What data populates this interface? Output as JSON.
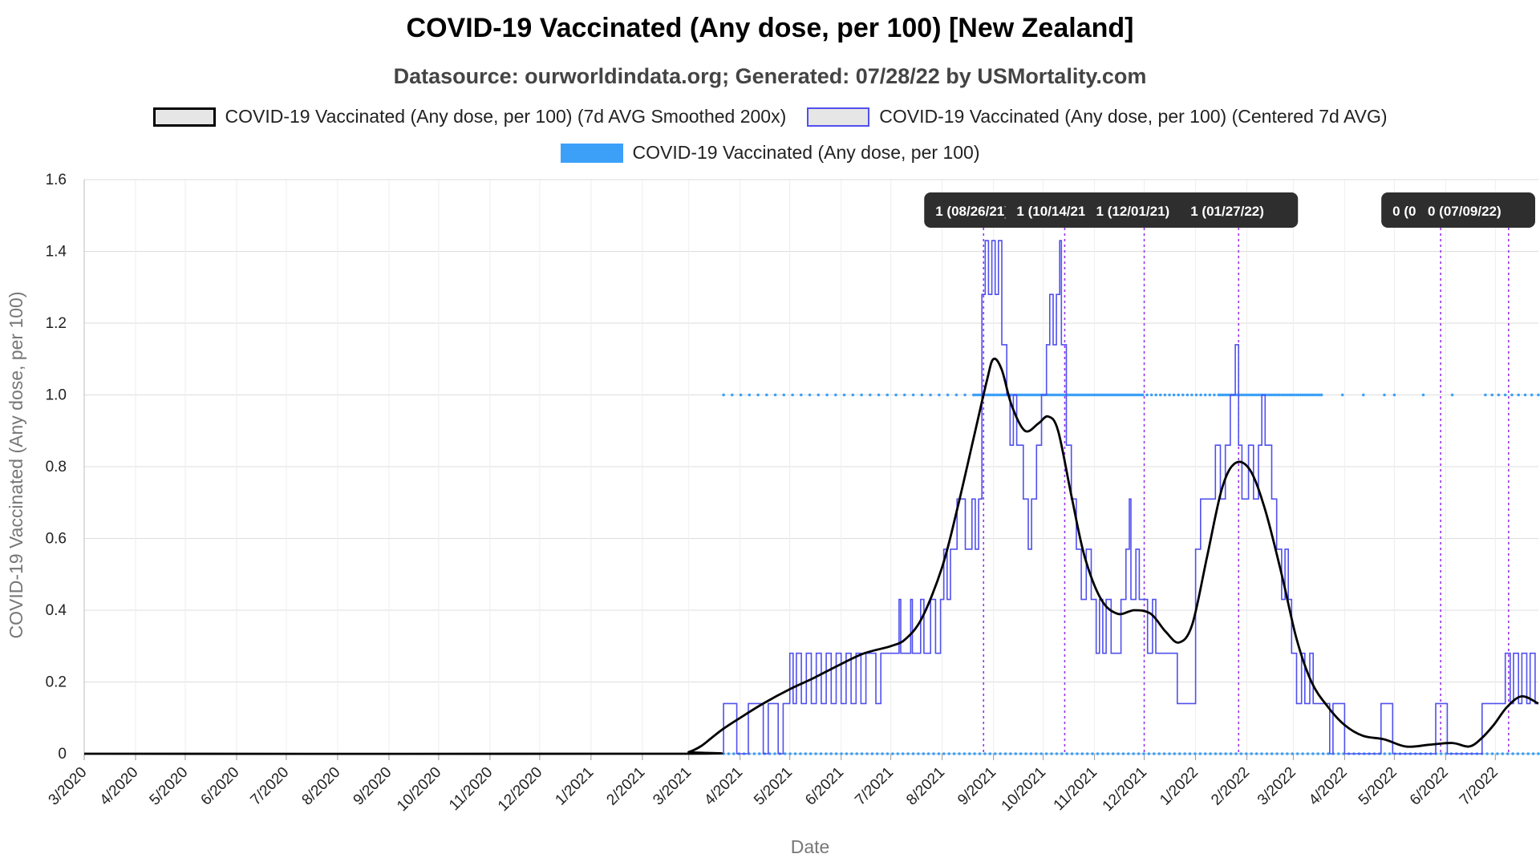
{
  "chart_data": {
    "type": "line",
    "title": "COVID-19 Vaccinated (Any dose, per 100) [New Zealand]",
    "subtitle": "Datasource: ourworldindata.org; Generated: 07/28/22 by USMortality.com",
    "xlabel": "Date",
    "ylabel": "COVID-19 Vaccinated (Any dose, per 100)",
    "ylim": [
      0,
      1.6
    ],
    "yticks": [
      "0",
      "0.2",
      "0.4",
      "0.6",
      "0.8",
      "1.0",
      "1.2",
      "1.4",
      "1.6"
    ],
    "x_range": [
      "2020-03-01",
      "2022-07-27"
    ],
    "xticks": [
      {
        "date": "2020-03-01",
        "label": "3/2020"
      },
      {
        "date": "2020-04-01",
        "label": "4/2020"
      },
      {
        "date": "2020-05-01",
        "label": "5/2020"
      },
      {
        "date": "2020-06-01",
        "label": "6/2020"
      },
      {
        "date": "2020-07-01",
        "label": "7/2020"
      },
      {
        "date": "2020-08-01",
        "label": "8/2020"
      },
      {
        "date": "2020-09-01",
        "label": "9/2020"
      },
      {
        "date": "2020-10-01",
        "label": "10/2020"
      },
      {
        "date": "2020-11-01",
        "label": "11/2020"
      },
      {
        "date": "2020-12-01",
        "label": "12/2020"
      },
      {
        "date": "2021-01-01",
        "label": "1/2021"
      },
      {
        "date": "2021-02-01",
        "label": "2/2021"
      },
      {
        "date": "2021-03-01",
        "label": "3/2021"
      },
      {
        "date": "2021-04-01",
        "label": "4/2021"
      },
      {
        "date": "2021-05-01",
        "label": "5/2021"
      },
      {
        "date": "2021-06-01",
        "label": "6/2021"
      },
      {
        "date": "2021-07-01",
        "label": "7/2021"
      },
      {
        "date": "2021-08-01",
        "label": "8/2021"
      },
      {
        "date": "2021-09-01",
        "label": "9/2021"
      },
      {
        "date": "2021-10-01",
        "label": "10/2021"
      },
      {
        "date": "2021-11-01",
        "label": "11/2021"
      },
      {
        "date": "2021-12-01",
        "label": "12/2021"
      },
      {
        "date": "2022-01-01",
        "label": "1/2022"
      },
      {
        "date": "2022-02-01",
        "label": "2/2022"
      },
      {
        "date": "2022-03-01",
        "label": "3/2022"
      },
      {
        "date": "2022-04-01",
        "label": "4/2022"
      },
      {
        "date": "2022-05-01",
        "label": "5/2022"
      },
      {
        "date": "2022-06-01",
        "label": "6/2022"
      },
      {
        "date": "2022-07-01",
        "label": "7/2022"
      }
    ],
    "grid": true,
    "legend_position": "top-center",
    "series": [
      {
        "name": "COVID-19 Vaccinated (Any dose, per 100) (7d AVG Smoothed 200x)",
        "style": "smooth-line",
        "color": "#000000",
        "points": [
          [
            "2020-03-01",
            0
          ],
          [
            "2021-02-20",
            0
          ],
          [
            "2021-03-01",
            0.005
          ],
          [
            "2021-03-08",
            0.02
          ],
          [
            "2021-03-15",
            0.045
          ],
          [
            "2021-03-22",
            0.07
          ],
          [
            "2021-04-01",
            0.1
          ],
          [
            "2021-04-15",
            0.14
          ],
          [
            "2021-05-01",
            0.18
          ],
          [
            "2021-05-15",
            0.21
          ],
          [
            "2021-06-01",
            0.25
          ],
          [
            "2021-06-15",
            0.28
          ],
          [
            "2021-07-01",
            0.3
          ],
          [
            "2021-07-10",
            0.32
          ],
          [
            "2021-07-20",
            0.38
          ],
          [
            "2021-08-01",
            0.52
          ],
          [
            "2021-08-10",
            0.68
          ],
          [
            "2021-08-20",
            0.88
          ],
          [
            "2021-08-28",
            1.04
          ],
          [
            "2021-09-01",
            1.1
          ],
          [
            "2021-09-06",
            1.07
          ],
          [
            "2021-09-12",
            0.97
          ],
          [
            "2021-09-20",
            0.9
          ],
          [
            "2021-09-28",
            0.92
          ],
          [
            "2021-10-04",
            0.94
          ],
          [
            "2021-10-10",
            0.9
          ],
          [
            "2021-10-18",
            0.72
          ],
          [
            "2021-10-26",
            0.55
          ],
          [
            "2021-11-05",
            0.43
          ],
          [
            "2021-11-15",
            0.39
          ],
          [
            "2021-11-25",
            0.4
          ],
          [
            "2021-12-05",
            0.39
          ],
          [
            "2021-12-14",
            0.34
          ],
          [
            "2021-12-22",
            0.31
          ],
          [
            "2021-12-30",
            0.36
          ],
          [
            "2022-01-08",
            0.55
          ],
          [
            "2022-01-17",
            0.74
          ],
          [
            "2022-01-25",
            0.81
          ],
          [
            "2022-02-03",
            0.79
          ],
          [
            "2022-02-12",
            0.68
          ],
          [
            "2022-02-22",
            0.5
          ],
          [
            "2022-03-03",
            0.32
          ],
          [
            "2022-03-12",
            0.2
          ],
          [
            "2022-03-22",
            0.13
          ],
          [
            "2022-04-01",
            0.08
          ],
          [
            "2022-04-12",
            0.05
          ],
          [
            "2022-04-25",
            0.04
          ],
          [
            "2022-05-08",
            0.02
          ],
          [
            "2022-05-22",
            0.025
          ],
          [
            "2022-06-05",
            0.03
          ],
          [
            "2022-06-15",
            0.02
          ],
          [
            "2022-06-22",
            0.04
          ],
          [
            "2022-06-30",
            0.08
          ],
          [
            "2022-07-08",
            0.13
          ],
          [
            "2022-07-17",
            0.16
          ],
          [
            "2022-07-27",
            0.14
          ]
        ]
      },
      {
        "name": "COVID-19 Vaccinated (Any dose, per 100) (Centered 7d AVG)",
        "style": "step-line",
        "color": "#5050ee",
        "points": [
          [
            "2020-03-01",
            0
          ],
          [
            "2021-03-21",
            0
          ],
          [
            "2021-03-22",
            0.14
          ],
          [
            "2021-03-29",
            0.14
          ],
          [
            "2021-03-30",
            0
          ],
          [
            "2021-04-05",
            0
          ],
          [
            "2021-04-06",
            0.14
          ],
          [
            "2021-04-14",
            0.14
          ],
          [
            "2021-04-15",
            0
          ],
          [
            "2021-04-18",
            0.14
          ],
          [
            "2021-04-24",
            0
          ],
          [
            "2021-04-27",
            0.14
          ],
          [
            "2021-04-30",
            0.14
          ],
          [
            "2021-05-01",
            0.28
          ],
          [
            "2021-05-03",
            0.14
          ],
          [
            "2021-05-05",
            0.28
          ],
          [
            "2021-05-08",
            0.14
          ],
          [
            "2021-05-11",
            0.28
          ],
          [
            "2021-05-14",
            0.14
          ],
          [
            "2021-05-17",
            0.28
          ],
          [
            "2021-05-20",
            0.14
          ],
          [
            "2021-05-23",
            0.28
          ],
          [
            "2021-05-26",
            0.14
          ],
          [
            "2021-05-29",
            0.28
          ],
          [
            "2021-06-01",
            0.14
          ],
          [
            "2021-06-04",
            0.28
          ],
          [
            "2021-06-07",
            0.14
          ],
          [
            "2021-06-10",
            0.28
          ],
          [
            "2021-06-13",
            0.14
          ],
          [
            "2021-06-16",
            0.28
          ],
          [
            "2021-06-19",
            0.28
          ],
          [
            "2021-06-22",
            0.14
          ],
          [
            "2021-06-25",
            0.28
          ],
          [
            "2021-07-05",
            0.28
          ],
          [
            "2021-07-06",
            0.43
          ],
          [
            "2021-07-07",
            0.28
          ],
          [
            "2021-07-12",
            0.28
          ],
          [
            "2021-07-13",
            0.43
          ],
          [
            "2021-07-14",
            0.28
          ],
          [
            "2021-07-18",
            0.28
          ],
          [
            "2021-07-19",
            0.43
          ],
          [
            "2021-07-21",
            0.28
          ],
          [
            "2021-07-25",
            0.43
          ],
          [
            "2021-07-28",
            0.28
          ],
          [
            "2021-07-31",
            0.43
          ],
          [
            "2021-08-02",
            0.57
          ],
          [
            "2021-08-04",
            0.43
          ],
          [
            "2021-08-06",
            0.57
          ],
          [
            "2021-08-09",
            0.57
          ],
          [
            "2021-08-10",
            0.71
          ],
          [
            "2021-08-14",
            0.71
          ],
          [
            "2021-08-15",
            0.57
          ],
          [
            "2021-08-19",
            0.71
          ],
          [
            "2021-08-21",
            0.57
          ],
          [
            "2021-08-23",
            0.71
          ],
          [
            "2021-08-25",
            1.28
          ],
          [
            "2021-08-27",
            1.43
          ],
          [
            "2021-08-29",
            1.28
          ],
          [
            "2021-08-31",
            1.43
          ],
          [
            "2021-09-02",
            1.28
          ],
          [
            "2021-09-04",
            1.43
          ],
          [
            "2021-09-06",
            1.14
          ],
          [
            "2021-09-09",
            1.0
          ],
          [
            "2021-09-11",
            0.86
          ],
          [
            "2021-09-13",
            1.0
          ],
          [
            "2021-09-15",
            0.86
          ],
          [
            "2021-09-19",
            0.71
          ],
          [
            "2021-09-22",
            0.57
          ],
          [
            "2021-09-24",
            0.71
          ],
          [
            "2021-09-27",
            0.86
          ],
          [
            "2021-09-30",
            1.0
          ],
          [
            "2021-10-03",
            1.14
          ],
          [
            "2021-10-05",
            1.28
          ],
          [
            "2021-10-07",
            1.14
          ],
          [
            "2021-10-09",
            1.28
          ],
          [
            "2021-10-11",
            1.43
          ],
          [
            "2021-10-12",
            1.14
          ],
          [
            "2021-10-15",
            0.86
          ],
          [
            "2021-10-18",
            0.71
          ],
          [
            "2021-10-21",
            0.57
          ],
          [
            "2021-10-24",
            0.43
          ],
          [
            "2021-10-27",
            0.57
          ],
          [
            "2021-10-30",
            0.43
          ],
          [
            "2021-11-02",
            0.28
          ],
          [
            "2021-11-04",
            0.43
          ],
          [
            "2021-11-06",
            0.28
          ],
          [
            "2021-11-08",
            0.43
          ],
          [
            "2021-11-11",
            0.28
          ],
          [
            "2021-11-14",
            0.28
          ],
          [
            "2021-11-17",
            0.43
          ],
          [
            "2021-11-20",
            0.57
          ],
          [
            "2021-11-22",
            0.71
          ],
          [
            "2021-11-23",
            0.43
          ],
          [
            "2021-11-26",
            0.57
          ],
          [
            "2021-11-28",
            0.43
          ],
          [
            "2021-12-01",
            0.43
          ],
          [
            "2021-12-03",
            0.28
          ],
          [
            "2021-12-06",
            0.43
          ],
          [
            "2021-12-08",
            0.28
          ],
          [
            "2021-12-20",
            0.28
          ],
          [
            "2021-12-21",
            0.14
          ],
          [
            "2021-12-31",
            0.14
          ],
          [
            "2022-01-01",
            0.57
          ],
          [
            "2022-01-04",
            0.71
          ],
          [
            "2022-01-12",
            0.71
          ],
          [
            "2022-01-13",
            0.86
          ],
          [
            "2022-01-16",
            0.71
          ],
          [
            "2022-01-19",
            0.86
          ],
          [
            "2022-01-22",
            1.0
          ],
          [
            "2022-01-25",
            1.14
          ],
          [
            "2022-01-27",
            0.86
          ],
          [
            "2022-01-29",
            0.71
          ],
          [
            "2022-02-02",
            0.86
          ],
          [
            "2022-02-05",
            0.71
          ],
          [
            "2022-02-08",
            0.86
          ],
          [
            "2022-02-10",
            1.0
          ],
          [
            "2022-02-12",
            0.86
          ],
          [
            "2022-02-16",
            0.71
          ],
          [
            "2022-02-19",
            0.57
          ],
          [
            "2022-02-22",
            0.43
          ],
          [
            "2022-02-24",
            0.57
          ],
          [
            "2022-02-26",
            0.43
          ],
          [
            "2022-02-28",
            0.28
          ],
          [
            "2022-03-03",
            0.14
          ],
          [
            "2022-03-06",
            0.28
          ],
          [
            "2022-03-08",
            0.14
          ],
          [
            "2022-03-11",
            0.28
          ],
          [
            "2022-03-13",
            0.14
          ],
          [
            "2022-03-22",
            0.14
          ],
          [
            "2022-03-23",
            0.0
          ],
          [
            "2022-03-25",
            0.14
          ],
          [
            "2022-03-30",
            0.14
          ],
          [
            "2022-04-01",
            0.0
          ],
          [
            "2022-04-22",
            0.0
          ],
          [
            "2022-04-23",
            0.14
          ],
          [
            "2022-04-29",
            0.14
          ],
          [
            "2022-04-30",
            0.0
          ],
          [
            "2022-05-25",
            0.0
          ],
          [
            "2022-05-26",
            0.14
          ],
          [
            "2022-06-01",
            0.14
          ],
          [
            "2022-06-02",
            0.0
          ],
          [
            "2022-06-22",
            0.0
          ],
          [
            "2022-06-23",
            0.14
          ],
          [
            "2022-07-06",
            0.14
          ],
          [
            "2022-07-07",
            0.28
          ],
          [
            "2022-07-10",
            0.14
          ],
          [
            "2022-07-12",
            0.28
          ],
          [
            "2022-07-15",
            0.14
          ],
          [
            "2022-07-17",
            0.28
          ],
          [
            "2022-07-20",
            0.14
          ],
          [
            "2022-07-22",
            0.28
          ],
          [
            "2022-07-25",
            0.14
          ],
          [
            "2022-07-27",
            0.14
          ]
        ]
      },
      {
        "name": "COVID-19 Vaccinated (Any dose, per 100)",
        "style": "points",
        "color": "#3ca0f8",
        "ones_segments": [
          [
            "2021-03-22",
            "2021-08-20",
            30
          ],
          [
            "2021-08-20",
            "2021-11-30",
            90
          ],
          [
            "2021-11-30",
            "2022-01-15",
            18
          ],
          [
            "2022-01-15",
            "2022-03-18",
            50
          ],
          [
            "2022-03-18",
            "2022-04-25",
            4
          ],
          [
            "2022-05-01",
            "2022-06-05",
            3
          ],
          [
            "2022-06-25",
            "2022-07-27",
            9
          ]
        ],
        "zeros_segments": [
          [
            "2021-03-22",
            "2022-07-27",
            160
          ]
        ]
      }
    ],
    "markers": [
      {
        "date": "2021-08-26",
        "label": "1 (08/26/21)"
      },
      {
        "date": "2021-10-14",
        "label": "1 (10/14/21)"
      },
      {
        "date": "2021-12-01",
        "label": "1 (12/01/21)"
      },
      {
        "date": "2022-01-27",
        "label": "1 (01/27/22)"
      },
      {
        "date": "2022-05-29",
        "label": "0 (05/29/22)"
      },
      {
        "date": "2022-07-09",
        "label": "0 (07/09/22)"
      }
    ]
  }
}
